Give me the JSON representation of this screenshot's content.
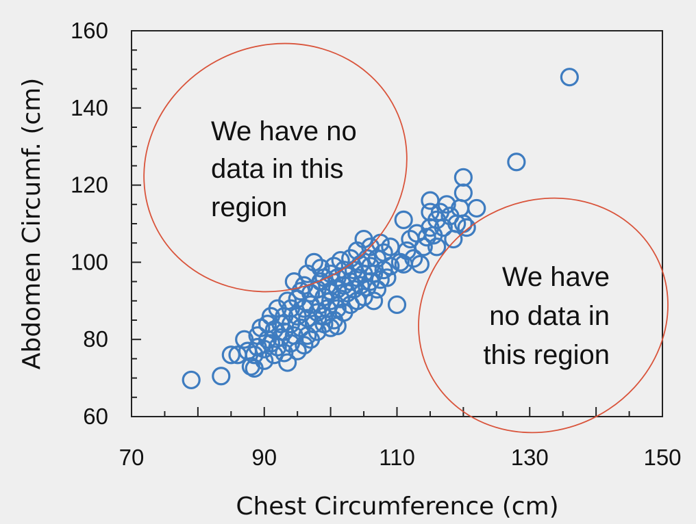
{
  "chart_data": {
    "type": "scatter",
    "title": "",
    "xlabel": "Chest Circumference (cm)",
    "ylabel": "Abdomen Circumf. (cm)",
    "xlim": [
      70,
      150
    ],
    "ylim": [
      60,
      160
    ],
    "xticks": [
      "70",
      "90",
      "110",
      "130",
      "150"
    ],
    "yticks": [
      "60",
      "80",
      "100",
      "120",
      "140",
      "160"
    ],
    "grid": false,
    "marker": "open-circle",
    "color": "#3e7cc0",
    "annotations": [
      {
        "label": "no-data-upper-left",
        "lines": [
          "We have no",
          "data in this",
          "region"
        ]
      },
      {
        "label": "no-data-lower-right",
        "lines": [
          "We have",
          "no data in",
          "this region"
        ]
      }
    ],
    "annotation_color": "#d9533a",
    "points": [
      [
        79,
        69.5
      ],
      [
        83.5,
        70.5
      ],
      [
        85,
        76
      ],
      [
        86,
        76
      ],
      [
        87,
        80
      ],
      [
        87.5,
        77
      ],
      [
        88,
        73
      ],
      [
        88.5,
        72.5
      ],
      [
        88.5,
        76
      ],
      [
        89,
        78
      ],
      [
        89,
        81
      ],
      [
        89.5,
        83
      ],
      [
        90,
        74.5
      ],
      [
        90,
        77.5
      ],
      [
        90.5,
        80
      ],
      [
        90.5,
        84
      ],
      [
        91,
        79
      ],
      [
        91,
        86
      ],
      [
        91.5,
        76
      ],
      [
        91.5,
        82.5
      ],
      [
        92,
        78
      ],
      [
        92,
        88
      ],
      [
        92.5,
        80.5
      ],
      [
        92.5,
        84
      ],
      [
        93,
        76.5
      ],
      [
        93,
        82
      ],
      [
        93,
        86
      ],
      [
        93.5,
        90
      ],
      [
        93.5,
        74
      ],
      [
        94,
        79
      ],
      [
        94,
        84
      ],
      [
        94,
        88
      ],
      [
        94.5,
        81
      ],
      [
        94.5,
        95
      ],
      [
        95,
        77
      ],
      [
        95,
        86
      ],
      [
        95,
        90.5
      ],
      [
        95.5,
        83
      ],
      [
        95.5,
        92.5
      ],
      [
        96,
        78.5
      ],
      [
        96,
        88
      ],
      [
        96,
        94
      ],
      [
        96.5,
        81
      ],
      [
        96.5,
        85.5
      ],
      [
        96.5,
        97
      ],
      [
        97,
        80
      ],
      [
        97,
        89
      ],
      [
        97,
        92
      ],
      [
        97.5,
        84
      ],
      [
        97.5,
        100
      ],
      [
        98,
        82
      ],
      [
        98,
        87
      ],
      [
        98,
        93
      ],
      [
        98.5,
        89
      ],
      [
        98.5,
        95
      ],
      [
        98.5,
        98.5
      ],
      [
        99,
        84
      ],
      [
        99,
        86
      ],
      [
        99,
        91
      ],
      [
        99,
        96
      ],
      [
        99.5,
        88
      ],
      [
        99.5,
        94
      ],
      [
        100,
        83
      ],
      [
        100,
        90
      ],
      [
        100,
        92.5
      ],
      [
        100,
        97
      ],
      [
        100.5,
        85
      ],
      [
        100.5,
        99
      ],
      [
        101,
        83.5
      ],
      [
        101,
        88
      ],
      [
        101,
        93
      ],
      [
        101,
        96
      ],
      [
        101.5,
        90.5
      ],
      [
        101.5,
        100.5
      ],
      [
        102,
        87
      ],
      [
        102,
        94
      ],
      [
        102,
        98
      ],
      [
        102.5,
        92
      ],
      [
        102.5,
        96.5
      ],
      [
        103,
        89
      ],
      [
        103,
        95
      ],
      [
        103,
        101
      ],
      [
        103.5,
        93
      ],
      [
        103.5,
        98
      ],
      [
        104,
        90
      ],
      [
        104,
        96
      ],
      [
        104,
        103
      ],
      [
        104.5,
        94
      ],
      [
        104.5,
        99.5
      ],
      [
        105,
        91
      ],
      [
        105,
        97
      ],
      [
        105,
        106
      ],
      [
        105.5,
        93.5
      ],
      [
        105.5,
        101
      ],
      [
        106,
        95
      ],
      [
        106,
        99
      ],
      [
        106,
        104
      ],
      [
        106.5,
        90
      ],
      [
        106.5,
        97
      ],
      [
        107,
        93
      ],
      [
        107,
        101
      ],
      [
        107.5,
        95.5
      ],
      [
        107.5,
        105
      ],
      [
        108,
        98
      ],
      [
        108,
        102.5
      ],
      [
        108.5,
        96
      ],
      [
        109,
        99
      ],
      [
        109,
        104
      ],
      [
        110,
        89
      ],
      [
        110.5,
        100
      ],
      [
        111,
        99.5
      ],
      [
        111,
        111
      ],
      [
        111.5,
        103
      ],
      [
        112,
        106
      ],
      [
        112.5,
        101
      ],
      [
        113,
        107.5
      ],
      [
        113.5,
        99.5
      ],
      [
        114,
        104
      ],
      [
        114.5,
        106.5
      ],
      [
        115,
        109
      ],
      [
        115,
        113
      ],
      [
        115,
        116
      ],
      [
        115.5,
        107
      ],
      [
        116,
        104
      ],
      [
        116,
        111
      ],
      [
        116.5,
        113
      ],
      [
        117,
        109
      ],
      [
        117.5,
        115
      ],
      [
        118,
        112
      ],
      [
        118.5,
        106
      ],
      [
        119,
        110
      ],
      [
        119.5,
        114
      ],
      [
        120,
        110
      ],
      [
        120,
        118
      ],
      [
        120,
        122
      ],
      [
        120.5,
        109
      ],
      [
        122,
        114
      ],
      [
        128,
        126
      ],
      [
        136,
        148
      ]
    ]
  }
}
